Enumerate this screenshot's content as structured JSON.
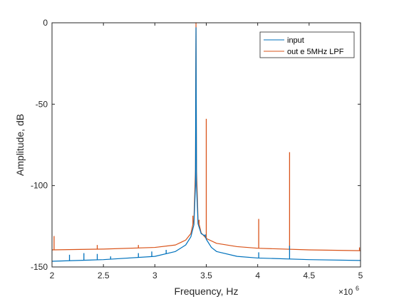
{
  "chart_data": {
    "type": "line",
    "xlabel": "Frequency, Hz",
    "ylabel": "Amplitude, dB",
    "x_multiplier": "10^6",
    "x_multiplier_base": "×10",
    "x_multiplier_exp": "6",
    "xlim": [
      2,
      5
    ],
    "ylim": [
      -150,
      0
    ],
    "xticks": [
      2,
      2.5,
      3,
      3.5,
      4,
      4.5,
      5
    ],
    "xtick_labels": [
      "2",
      "2.5",
      "3",
      "3.5",
      "4",
      "4.5",
      "5"
    ],
    "yticks": [
      0,
      -50,
      -100,
      -150
    ],
    "ytick_labels": [
      "0",
      "-50",
      "-100",
      "-150"
    ],
    "grid": false,
    "legend_position": "top-right",
    "series": [
      {
        "name": "out e 5MHz LPF",
        "color": "#d95319",
        "base": [
          [
            2,
            -139.5
          ],
          [
            2.5,
            -139.0
          ],
          [
            3,
            -138.0
          ],
          [
            3.2,
            -136.5
          ],
          [
            3.3,
            -133.5
          ],
          [
            3.35,
            -129.5
          ],
          [
            3.38,
            -121.0
          ],
          [
            3.395,
            -90.0
          ],
          [
            3.4,
            0
          ],
          [
            3.405,
            -90.0
          ],
          [
            3.42,
            -121.0
          ],
          [
            3.45,
            -129.0
          ],
          [
            3.5,
            -132.5
          ],
          [
            3.6,
            -135.5
          ],
          [
            3.8,
            -137.5
          ],
          [
            4.0,
            -138.5
          ],
          [
            4.5,
            -139.5
          ],
          [
            5,
            -140.0
          ]
        ],
        "spikes": [
          [
            2.02,
            -131
          ],
          [
            2.44,
            -136.5
          ],
          [
            2.84,
            -136.5
          ],
          [
            3.37,
            -118.5
          ],
          [
            3.43,
            -121.0
          ],
          [
            3.5,
            -59.0
          ],
          [
            4.01,
            -120.5
          ],
          [
            4.31,
            -79.5
          ],
          [
            4.99,
            -138.0
          ]
        ]
      },
      {
        "name": "input",
        "color": "#0072bd",
        "base": [
          [
            2,
            -146.5
          ],
          [
            2.5,
            -145.5
          ],
          [
            3,
            -143.5
          ],
          [
            3.2,
            -140.5
          ],
          [
            3.3,
            -136.5
          ],
          [
            3.35,
            -131.5
          ],
          [
            3.38,
            -124.0
          ],
          [
            3.395,
            -100.0
          ],
          [
            3.4,
            -3.0
          ],
          [
            3.405,
            -100.0
          ],
          [
            3.42,
            -123.5
          ],
          [
            3.45,
            -129.5
          ],
          [
            3.49,
            -131.0
          ],
          [
            3.5,
            -133.0
          ],
          [
            3.55,
            -138.0
          ],
          [
            3.6,
            -140.5
          ],
          [
            3.8,
            -143.5
          ],
          [
            4.0,
            -144.5
          ],
          [
            4.5,
            -145.5
          ],
          [
            5,
            -146.0
          ]
        ],
        "spikes": [
          [
            2.17,
            -142.5
          ],
          [
            2.31,
            -141.5
          ],
          [
            2.44,
            -142.0
          ],
          [
            2.57,
            -143.5
          ],
          [
            2.84,
            -141.5
          ],
          [
            2.97,
            -140.5
          ],
          [
            3.11,
            -139.5
          ],
          [
            3.49,
            -130.0
          ],
          [
            4.01,
            -141.0
          ],
          [
            4.31,
            -137.0
          ]
        ]
      }
    ]
  }
}
